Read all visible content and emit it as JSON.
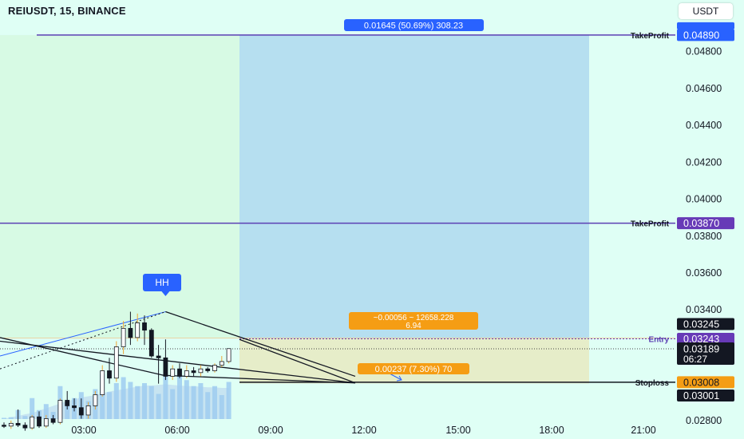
{
  "title": "REIUSDT, 15, BINANCE",
  "currency": "USDT",
  "colors": {
    "background": "#dffff5",
    "profit_zone": "#b6dff0",
    "loss_zone": "#e6edc9",
    "bull": "#ffffff",
    "bear": "#131722",
    "volume": "#9fcdf0",
    "target": "#5b3fb3",
    "entry_tag": "#673ab7",
    "stop_tag": "#f59d14",
    "profit_tag": "#2962ff",
    "hh_tag": "#2962ff"
  },
  "chart_data": {
    "type": "candlestick",
    "y_axis": {
      "range": [
        0.027,
        0.0508
      ],
      "tick_labels": [
        "0.04800",
        "0.04600",
        "0.04400",
        "0.04200",
        "0.04000",
        "0.03800",
        "0.03600",
        "0.03400",
        "0.02800"
      ]
    },
    "x_axis": {
      "tick_labels": [
        "03:00",
        "06:00",
        "09:00",
        "12:00",
        "15:00",
        "18:00",
        "21:00"
      ]
    },
    "candles": [
      {
        "o": 0.02775,
        "h": 0.0279,
        "l": 0.0276,
        "c": 0.0277
      },
      {
        "o": 0.0277,
        "h": 0.028,
        "l": 0.02755,
        "c": 0.02785
      },
      {
        "o": 0.02785,
        "h": 0.0286,
        "l": 0.02765,
        "c": 0.02775
      },
      {
        "o": 0.02775,
        "h": 0.0279,
        "l": 0.02745,
        "c": 0.0276
      },
      {
        "o": 0.0276,
        "h": 0.0283,
        "l": 0.0275,
        "c": 0.0282
      },
      {
        "o": 0.0282,
        "h": 0.0285,
        "l": 0.0276,
        "c": 0.0277
      },
      {
        "o": 0.0277,
        "h": 0.0283,
        "l": 0.0276,
        "c": 0.0281
      },
      {
        "o": 0.0281,
        "h": 0.0283,
        "l": 0.0278,
        "c": 0.0279
      },
      {
        "o": 0.0279,
        "h": 0.0292,
        "l": 0.0278,
        "c": 0.0291
      },
      {
        "o": 0.0291,
        "h": 0.0296,
        "l": 0.0286,
        "c": 0.0288
      },
      {
        "o": 0.0288,
        "h": 0.0292,
        "l": 0.0285,
        "c": 0.0287
      },
      {
        "o": 0.0287,
        "h": 0.0292,
        "l": 0.0281,
        "c": 0.0283
      },
      {
        "o": 0.0283,
        "h": 0.029,
        "l": 0.0281,
        "c": 0.0288
      },
      {
        "o": 0.0288,
        "h": 0.0296,
        "l": 0.0286,
        "c": 0.0294
      },
      {
        "o": 0.0294,
        "h": 0.031,
        "l": 0.0293,
        "c": 0.0307
      },
      {
        "o": 0.0307,
        "h": 0.0314,
        "l": 0.03,
        "c": 0.0303
      },
      {
        "o": 0.0303,
        "h": 0.0323,
        "l": 0.0301,
        "c": 0.032
      },
      {
        "o": 0.032,
        "h": 0.0334,
        "l": 0.0316,
        "c": 0.033
      },
      {
        "o": 0.033,
        "h": 0.0339,
        "l": 0.0321,
        "c": 0.0325
      },
      {
        "o": 0.0325,
        "h": 0.0338,
        "l": 0.0323,
        "c": 0.0333
      },
      {
        "o": 0.0333,
        "h": 0.0337,
        "l": 0.0321,
        "c": 0.0329
      },
      {
        "o": 0.0329,
        "h": 0.033,
        "l": 0.0314,
        "c": 0.0315
      },
      {
        "o": 0.0315,
        "h": 0.0321,
        "l": 0.03,
        "c": 0.0314
      },
      {
        "o": 0.0314,
        "h": 0.0324,
        "l": 0.0302,
        "c": 0.0304
      },
      {
        "o": 0.0304,
        "h": 0.031,
        "l": 0.0302,
        "c": 0.0308
      },
      {
        "o": 0.0308,
        "h": 0.0311,
        "l": 0.0303,
        "c": 0.0304
      },
      {
        "o": 0.0304,
        "h": 0.031,
        "l": 0.0303,
        "c": 0.0307
      },
      {
        "o": 0.0307,
        "h": 0.0309,
        "l": 0.0304,
        "c": 0.0306
      },
      {
        "o": 0.0306,
        "h": 0.031,
        "l": 0.0304,
        "c": 0.0308
      },
      {
        "o": 0.0308,
        "h": 0.0309,
        "l": 0.0306,
        "c": 0.0307
      },
      {
        "o": 0.0307,
        "h": 0.0311,
        "l": 0.0306,
        "c": 0.031
      },
      {
        "o": 0.031,
        "h": 0.0315,
        "l": 0.0309,
        "c": 0.0312
      },
      {
        "o": 0.0312,
        "h": 0.0319,
        "l": 0.0311,
        "c": 0.0319
      }
    ],
    "volume_relative": [
      0.02,
      0.03,
      0.15,
      0.05,
      0.35,
      0.15,
      0.25,
      0.12,
      0.55,
      0.25,
      0.35,
      0.45,
      0.3,
      0.5,
      0.75,
      0.45,
      0.6,
      0.7,
      0.62,
      0.55,
      0.6,
      0.55,
      0.42,
      0.72,
      0.5,
      0.82,
      0.65,
      0.55,
      0.6,
      0.45,
      0.55,
      0.4,
      0.62
    ],
    "volume_area": [
      0.0,
      0.03,
      0.05,
      0.08,
      0.1,
      0.14,
      0.18,
      0.22,
      0.26,
      0.3,
      0.33,
      0.36,
      0.38,
      0.4,
      0.43,
      0.46,
      0.48,
      0.5,
      0.52,
      0.54,
      0.56,
      0.56,
      0.57,
      0.58,
      0.57,
      0.56,
      0.55,
      0.55,
      0.54,
      0.53,
      0.53,
      0.52,
      0.52
    ],
    "levels": {
      "take_profit_1": 0.0489,
      "take_profit_2": 0.0387,
      "entry": 0.03243,
      "last_price": 0.03189,
      "stoploss": 0.03008,
      "position_top": 0.03245,
      "position_bottom": 0.03001,
      "hh_price": 0.0339
    },
    "annotations": {
      "profit_label": "0.01645 (50.69%) 308.23",
      "position_label_1": "~0.00056 ~ 12658.228",
      "position_label_2": "6.94",
      "loss_label": "0.00237 (7.30%) 70",
      "hh": "HH",
      "take_profit_name": "TakeProfit",
      "entry_name": "Entry",
      "stoploss_name": "Stoploss",
      "countdown": "06:27"
    },
    "price_tags": {
      "tp1": "0.04890",
      "tp2": "0.03870",
      "top": "0.03245",
      "entry": "0.03243",
      "last": "0.03189",
      "stop": "0.03008",
      "bottom": "0.03001"
    }
  }
}
